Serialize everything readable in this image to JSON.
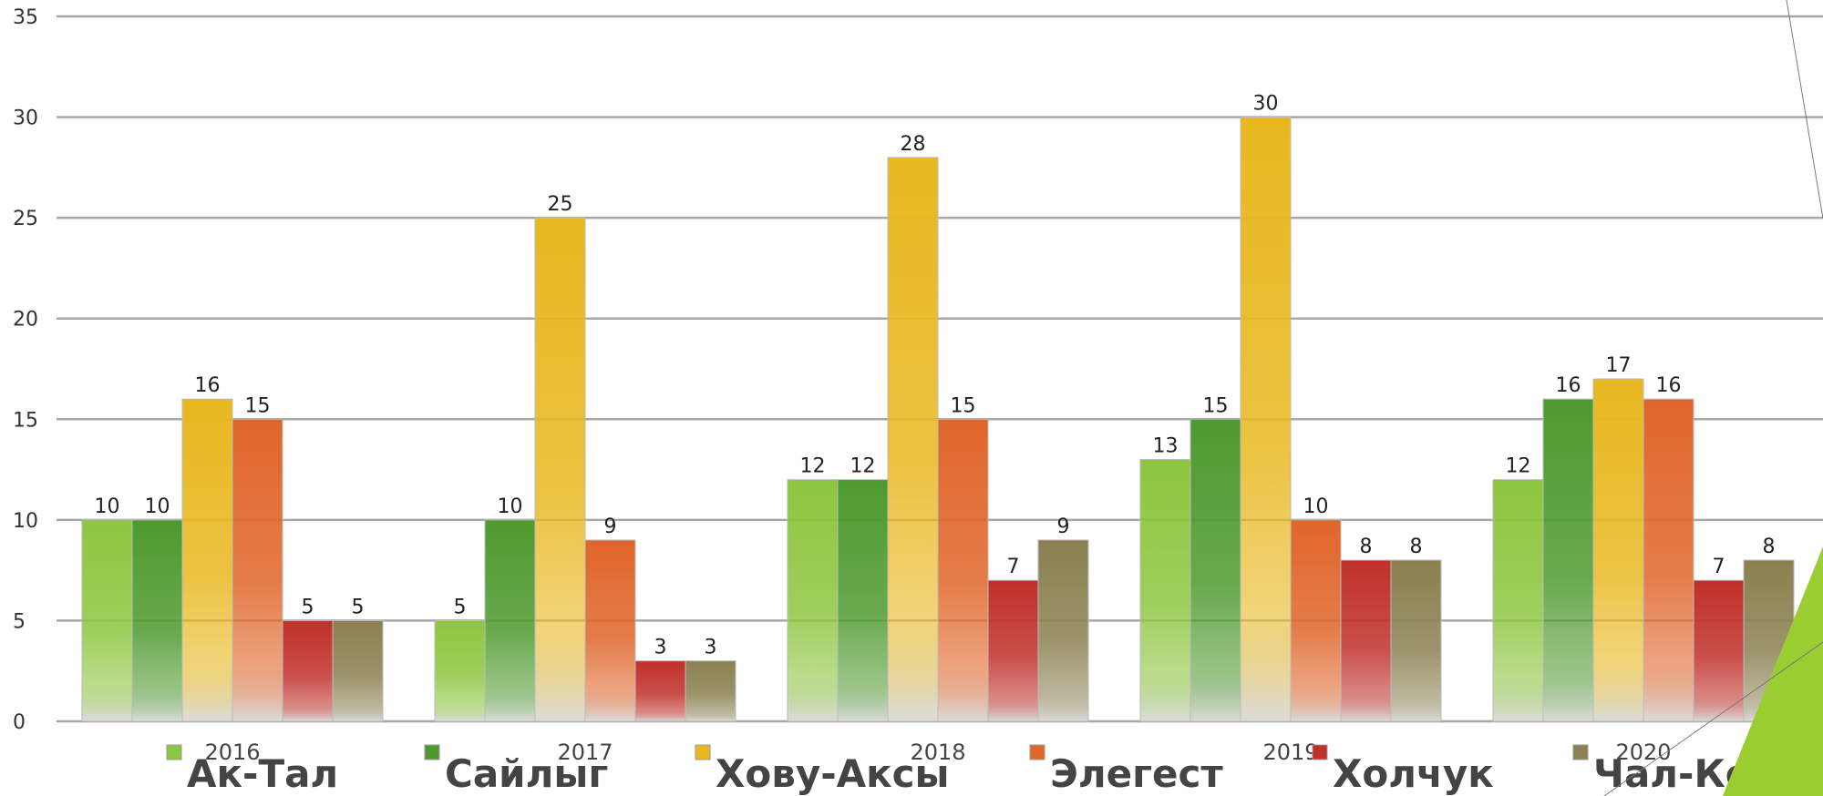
{
  "chart_data": {
    "type": "bar",
    "title": "",
    "xlabel": "",
    "ylabel": "",
    "ylim": [
      0,
      35
    ],
    "yticks": [
      0,
      5,
      10,
      15,
      20,
      25,
      30,
      35
    ],
    "grid": true,
    "legend_position": "bottom",
    "categories": [
      "2016",
      "2017",
      "2018",
      "2019",
      "2020"
    ],
    "series": [
      {
        "name": "Ак-Тал",
        "color": "#8dc63f",
        "values": [
          10,
          5,
          12,
          13,
          12
        ]
      },
      {
        "name": "Сайлыг",
        "color": "#4e9a2e",
        "values": [
          10,
          10,
          12,
          15,
          16
        ]
      },
      {
        "name": "Хову-Аксы",
        "color": "#e8b820",
        "values": [
          16,
          25,
          28,
          30,
          17
        ]
      },
      {
        "name": "Элегест",
        "color": "#e0662a",
        "values": [
          15,
          9,
          15,
          10,
          16
        ]
      },
      {
        "name": "Холчук",
        "color": "#c0302a",
        "values": [
          5,
          3,
          7,
          8,
          7
        ]
      },
      {
        "name": "Чал-Кежиг",
        "color": "#8a8050",
        "values": [
          5,
          3,
          9,
          8,
          8
        ]
      }
    ]
  }
}
